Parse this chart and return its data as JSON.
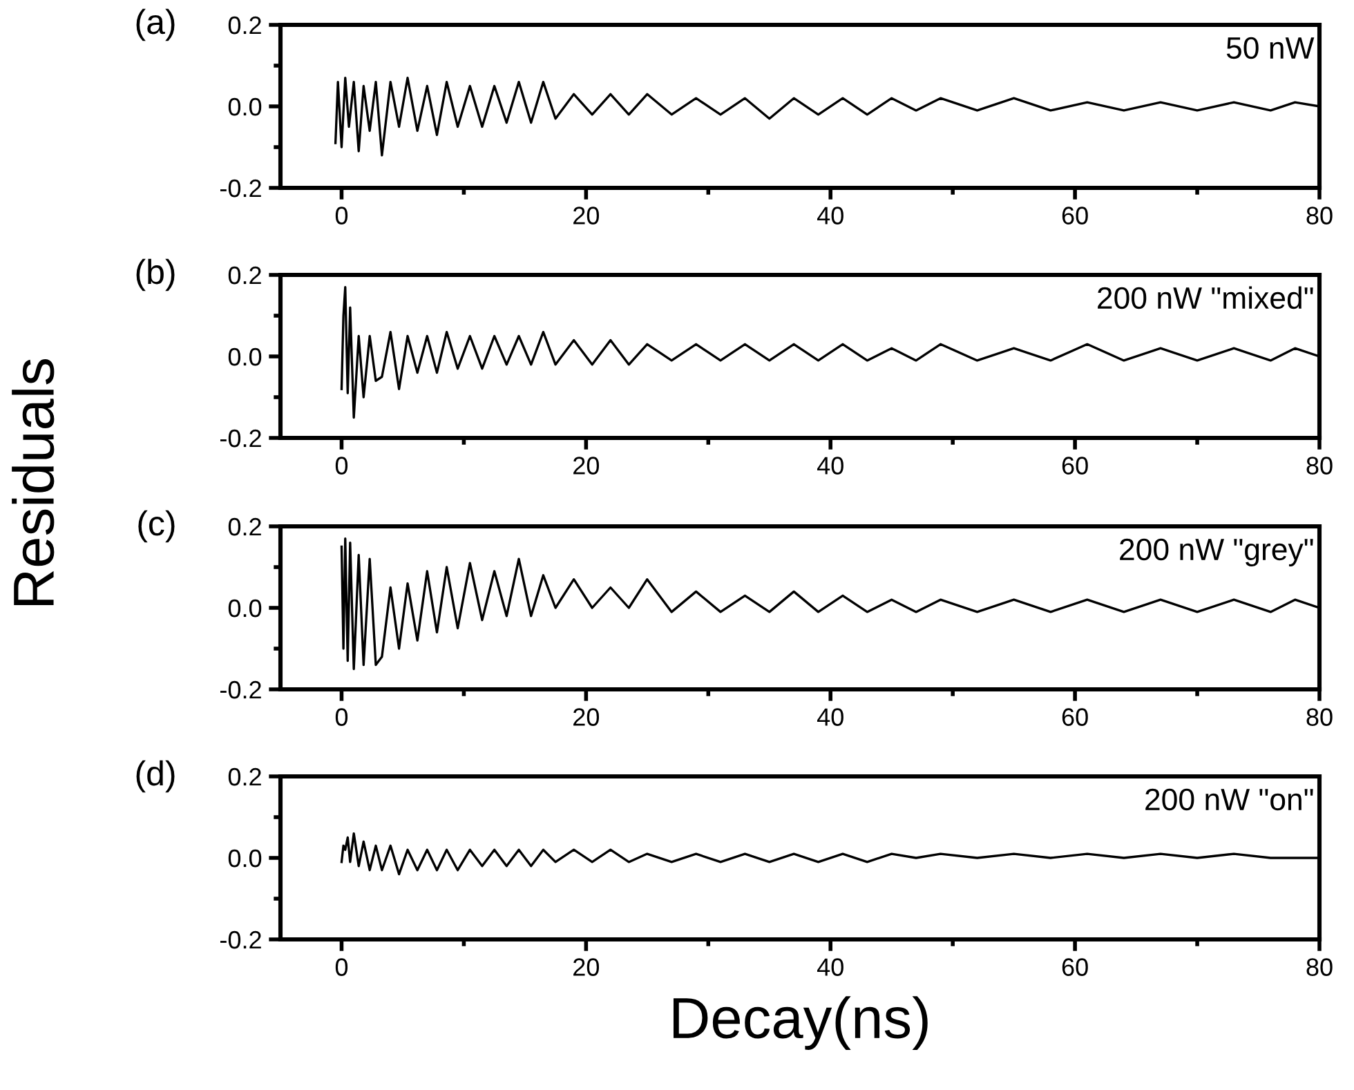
{
  "chart_data": [
    {
      "type": "line",
      "ylabel": "Residuals",
      "annotations": [
        "(a)",
        "50 nW"
      ],
      "xlim": [
        -5,
        80
      ],
      "ylim": [
        -0.2,
        0.2
      ],
      "xticks": [
        0,
        {
          "value": 10,
          "label": null
        },
        20,
        {
          "value": 30,
          "label": null
        },
        40,
        {
          "value": 50,
          "label": null
        },
        60,
        {
          "value": 70,
          "label": null
        },
        80
      ],
      "yticks": [
        {
          "value": -0.2,
          "label": "-0.2"
        },
        {
          "value": -0.1,
          "label": null
        },
        {
          "value": 0,
          "label": "0.0"
        },
        {
          "value": 0.1,
          "label": null
        },
        {
          "value": 0.2,
          "label": "0.2"
        }
      ],
      "grid": false,
      "legend": false,
      "marker": "none",
      "line_style": "solid",
      "x": [
        -0.5,
        -0.3,
        0,
        0.3,
        0.6,
        1,
        1.4,
        1.8,
        2.3,
        2.8,
        3.3,
        4,
        4.7,
        5.4,
        6.2,
        7,
        7.8,
        8.6,
        9.5,
        10.5,
        11.5,
        12.5,
        13.5,
        14.5,
        15.5,
        16.5,
        17.5,
        19,
        20.5,
        22,
        23.5,
        25,
        27,
        29,
        31,
        33,
        35,
        37,
        39,
        41,
        43,
        45,
        47,
        49,
        52,
        55,
        58,
        61,
        64,
        67,
        70,
        73,
        76,
        78,
        80
      ],
      "series": [
        {
          "color": "#000000",
          "values": [
            -0.09,
            0.06,
            -0.1,
            0.07,
            -0.05,
            0.06,
            -0.11,
            0.05,
            -0.06,
            0.06,
            -0.12,
            0.06,
            -0.05,
            0.07,
            -0.06,
            0.05,
            -0.07,
            0.06,
            -0.05,
            0.05,
            -0.05,
            0.05,
            -0.04,
            0.06,
            -0.04,
            0.06,
            -0.03,
            0.03,
            -0.02,
            0.03,
            -0.02,
            0.03,
            -0.02,
            0.02,
            -0.02,
            0.02,
            -0.03,
            0.02,
            -0.02,
            0.02,
            -0.02,
            0.02,
            -0.01,
            0.02,
            -0.01,
            0.02,
            -0.01,
            0.01,
            -0.01,
            0.01,
            -0.01,
            0.01,
            -0.01,
            0.01,
            0.0
          ]
        }
      ]
    },
    {
      "type": "line",
      "annotations": [
        "(b)",
        "200 nW \"mixed\""
      ],
      "xlim": [
        -5,
        80
      ],
      "ylim": [
        -0.2,
        0.2
      ],
      "xticks": [
        0,
        {
          "value": 10,
          "label": null
        },
        20,
        {
          "value": 30,
          "label": null
        },
        40,
        {
          "value": 50,
          "label": null
        },
        60,
        {
          "value": 70,
          "label": null
        },
        80
      ],
      "yticks": [
        {
          "value": -0.2,
          "label": "-0.2"
        },
        {
          "value": -0.1,
          "label": null
        },
        {
          "value": 0,
          "label": "0.0"
        },
        {
          "value": 0.1,
          "label": null
        },
        {
          "value": 0.2,
          "label": "0.2"
        }
      ],
      "grid": false,
      "legend": false,
      "marker": "none",
      "line_style": "solid",
      "x": [
        0,
        0.15,
        0.3,
        0.5,
        0.7,
        1,
        1.4,
        1.8,
        2.3,
        2.8,
        3.3,
        4,
        4.7,
        5.4,
        6.2,
        7,
        7.8,
        8.6,
        9.5,
        10.5,
        11.5,
        12.5,
        13.5,
        14.5,
        15.5,
        16.5,
        17.5,
        19,
        20.5,
        22,
        23.5,
        25,
        27,
        29,
        31,
        33,
        35,
        37,
        39,
        41,
        43,
        45,
        47,
        49,
        52,
        55,
        58,
        61,
        64,
        67,
        70,
        73,
        76,
        78,
        80
      ],
      "series": [
        {
          "color": "#000000",
          "values": [
            -0.08,
            0.1,
            0.17,
            -0.09,
            0.12,
            -0.15,
            0.05,
            -0.1,
            0.05,
            -0.06,
            -0.05,
            0.06,
            -0.08,
            0.05,
            -0.04,
            0.05,
            -0.04,
            0.06,
            -0.03,
            0.05,
            -0.03,
            0.05,
            -0.02,
            0.05,
            -0.02,
            0.06,
            -0.02,
            0.04,
            -0.02,
            0.04,
            -0.02,
            0.03,
            -0.01,
            0.03,
            -0.01,
            0.03,
            -0.01,
            0.03,
            -0.01,
            0.03,
            -0.01,
            0.02,
            -0.01,
            0.03,
            -0.01,
            0.02,
            -0.01,
            0.03,
            -0.01,
            0.02,
            -0.01,
            0.02,
            -0.01,
            0.02,
            0.0
          ]
        }
      ]
    },
    {
      "type": "line",
      "annotations": [
        "(c)",
        "200 nW \"grey\""
      ],
      "xlim": [
        -5,
        80
      ],
      "ylim": [
        -0.2,
        0.2
      ],
      "xticks": [
        0,
        {
          "value": 10,
          "label": null
        },
        20,
        {
          "value": 30,
          "label": null
        },
        40,
        {
          "value": 50,
          "label": null
        },
        60,
        {
          "value": 70,
          "label": null
        },
        80
      ],
      "yticks": [
        {
          "value": -0.2,
          "label": "-0.2"
        },
        {
          "value": -0.1,
          "label": null
        },
        {
          "value": 0,
          "label": "0.0"
        },
        {
          "value": 0.1,
          "label": null
        },
        {
          "value": 0.2,
          "label": "0.2"
        }
      ],
      "grid": false,
      "legend": false,
      "marker": "none",
      "line_style": "solid",
      "x": [
        0,
        0.15,
        0.3,
        0.5,
        0.7,
        1,
        1.4,
        1.8,
        2.3,
        2.8,
        3.3,
        4,
        4.7,
        5.4,
        6.2,
        7,
        7.8,
        8.6,
        9.5,
        10.5,
        11.5,
        12.5,
        13.5,
        14.5,
        15.5,
        16.5,
        17.5,
        19,
        20.5,
        22,
        23.5,
        25,
        27,
        29,
        31,
        33,
        35,
        37,
        39,
        41,
        43,
        45,
        47,
        49,
        52,
        55,
        58,
        61,
        64,
        67,
        70,
        73,
        76,
        78,
        80
      ],
      "series": [
        {
          "color": "#000000",
          "values": [
            0.15,
            -0.1,
            0.17,
            -0.13,
            0.16,
            -0.15,
            0.13,
            -0.14,
            0.12,
            -0.14,
            -0.12,
            0.05,
            -0.1,
            0.06,
            -0.08,
            0.09,
            -0.06,
            0.1,
            -0.05,
            0.11,
            -0.03,
            0.09,
            -0.02,
            0.12,
            -0.02,
            0.08,
            0.0,
            0.07,
            0.0,
            0.05,
            0.0,
            0.07,
            -0.01,
            0.04,
            -0.01,
            0.03,
            -0.01,
            0.04,
            -0.01,
            0.03,
            -0.01,
            0.02,
            -0.01,
            0.02,
            -0.01,
            0.02,
            -0.01,
            0.02,
            -0.01,
            0.02,
            -0.01,
            0.02,
            -0.01,
            0.02,
            0.0
          ]
        }
      ]
    },
    {
      "type": "line",
      "xlabel": "Decay(ns)",
      "annotations": [
        "(d)",
        "200 nW \"on\""
      ],
      "xlim": [
        -5,
        80
      ],
      "ylim": [
        -0.2,
        0.2
      ],
      "xticks": [
        0,
        {
          "value": 10,
          "label": null
        },
        20,
        {
          "value": 30,
          "label": null
        },
        40,
        {
          "value": 50,
          "label": null
        },
        60,
        {
          "value": 70,
          "label": null
        },
        80
      ],
      "yticks": [
        {
          "value": -0.2,
          "label": "-0.2"
        },
        {
          "value": -0.1,
          "label": null
        },
        {
          "value": 0,
          "label": "0.0"
        },
        {
          "value": 0.1,
          "label": null
        },
        {
          "value": 0.2,
          "label": "0.2"
        }
      ],
      "grid": false,
      "legend": false,
      "marker": "none",
      "line_style": "solid",
      "x": [
        0,
        0.15,
        0.3,
        0.5,
        0.7,
        1,
        1.4,
        1.8,
        2.3,
        2.8,
        3.3,
        4,
        4.7,
        5.4,
        6.2,
        7,
        7.8,
        8.6,
        9.5,
        10.5,
        11.5,
        12.5,
        13.5,
        14.5,
        15.5,
        16.5,
        17.5,
        19,
        20.5,
        22,
        23.5,
        25,
        27,
        29,
        31,
        33,
        35,
        37,
        39,
        41,
        43,
        45,
        47,
        49,
        52,
        55,
        58,
        61,
        64,
        67,
        70,
        73,
        76,
        78,
        80
      ],
      "series": [
        {
          "color": "#000000",
          "values": [
            -0.01,
            0.03,
            0.02,
            0.05,
            -0.01,
            0.06,
            -0.02,
            0.04,
            -0.03,
            0.03,
            -0.03,
            0.03,
            -0.04,
            0.02,
            -0.03,
            0.02,
            -0.03,
            0.02,
            -0.03,
            0.02,
            -0.02,
            0.02,
            -0.02,
            0.02,
            -0.02,
            0.02,
            -0.01,
            0.02,
            -0.01,
            0.02,
            -0.01,
            0.01,
            -0.01,
            0.01,
            -0.01,
            0.01,
            -0.01,
            0.01,
            -0.01,
            0.01,
            -0.01,
            0.01,
            0.0,
            0.01,
            0.0,
            0.01,
            0.0,
            0.01,
            0.0,
            0.01,
            0.0,
            0.01,
            0.0,
            0.0,
            0.0
          ]
        }
      ]
    }
  ]
}
